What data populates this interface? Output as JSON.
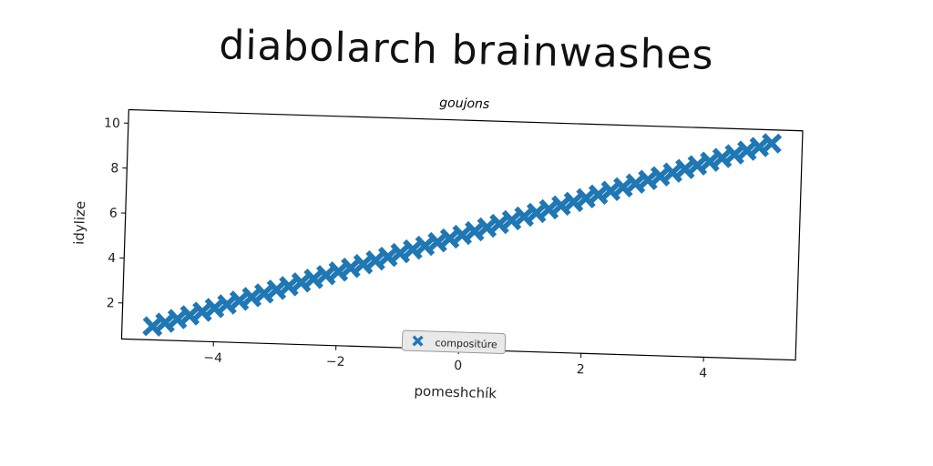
{
  "page": {
    "title": "diabolarch brainwashes"
  },
  "chart_data": {
    "type": "scatter",
    "title": "goujons",
    "xlabel": "pomeshchík",
    "ylabel": "idylize",
    "xlim": [
      -5.5,
      5.5
    ],
    "ylim": [
      0.4,
      10.6
    ],
    "xticks": [
      -4,
      -2,
      0,
      2,
      4
    ],
    "xtick_labels": [
      "−4",
      "−2",
      "0",
      "2",
      "4"
    ],
    "yticks": [
      2,
      4,
      6,
      8,
      10
    ],
    "ytick_labels": [
      "2",
      "4",
      "6",
      "8",
      "10"
    ],
    "grid": false,
    "legend": {
      "position": "lower center"
    },
    "series": [
      {
        "name": "compositúre",
        "color": "#1f77b4",
        "marker": "X",
        "x": [
          -5.0,
          -4.8,
          -4.6,
          -4.4,
          -4.2,
          -4.0,
          -3.8,
          -3.6,
          -3.4,
          -3.2,
          -3.0,
          -2.8,
          -2.6,
          -2.4,
          -2.2,
          -2.0,
          -1.8,
          -1.6,
          -1.4,
          -1.2,
          -1.0,
          -0.8,
          -0.6,
          -0.4,
          -0.2,
          0.0,
          0.2,
          0.4,
          0.6,
          0.8,
          1.0,
          1.2,
          1.4,
          1.6,
          1.8,
          2.0,
          2.2,
          2.4,
          2.6,
          2.8,
          3.0,
          3.2,
          3.4,
          3.6,
          3.8,
          4.0,
          4.2,
          4.4,
          4.6,
          4.8,
          5.0
        ],
        "y": [
          1.0,
          1.18,
          1.36,
          1.54,
          1.72,
          1.9,
          2.08,
          2.26,
          2.44,
          2.62,
          2.8,
          2.98,
          3.16,
          3.34,
          3.52,
          3.7,
          3.88,
          4.06,
          4.24,
          4.42,
          4.6,
          4.78,
          4.96,
          5.14,
          5.32,
          5.5,
          5.68,
          5.86,
          6.04,
          6.22,
          6.4,
          6.58,
          6.76,
          6.94,
          7.12,
          7.3,
          7.48,
          7.66,
          7.84,
          8.02,
          8.2,
          8.38,
          8.56,
          8.74,
          8.92,
          9.1,
          9.28,
          9.46,
          9.64,
          9.82,
          10.0
        ]
      }
    ]
  }
}
